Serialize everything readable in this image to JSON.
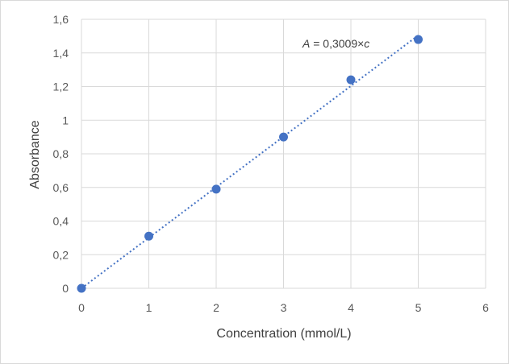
{
  "chart_data": {
    "type": "scatter",
    "title": "",
    "xlabel": "Concentration (mmol/L)",
    "ylabel": "Absorbance",
    "xlim": [
      0,
      6
    ],
    "ylim": [
      0,
      1.6
    ],
    "x_ticks": [
      "0",
      "1",
      "2",
      "3",
      "4",
      "5",
      "6"
    ],
    "y_ticks": [
      "0",
      "0,2",
      "0,4",
      "0,6",
      "0,8",
      "1",
      "1,2",
      "1,4",
      "1,6"
    ],
    "grid": true,
    "legend": "none",
    "series": [
      {
        "x": [
          0,
          1,
          2,
          3,
          4,
          5
        ],
        "y": [
          0,
          0.31,
          0.59,
          0.9,
          1.24,
          1.48
        ],
        "color": "#4472c4"
      }
    ],
    "trendline": {
      "type": "linear",
      "slope": 0.3009,
      "intercept": 0,
      "x_range": [
        0,
        5
      ],
      "style": "dotted",
      "color": "#4472c4",
      "equation": {
        "var_a": "A",
        "middle": " = 0,3009×",
        "var_c": "c"
      }
    }
  }
}
